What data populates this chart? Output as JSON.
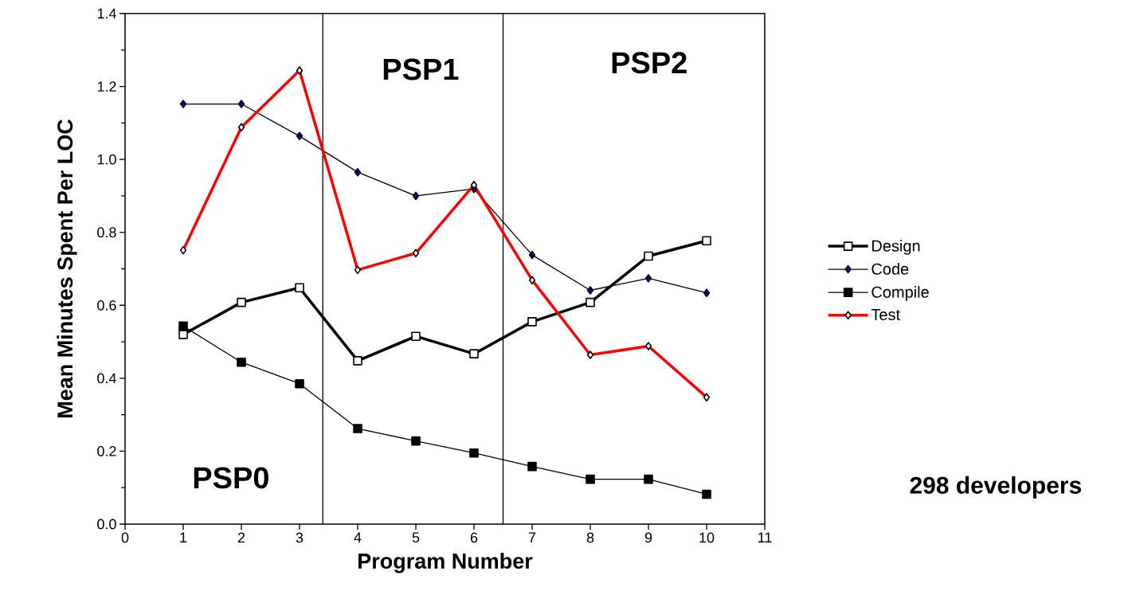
{
  "chart_data": {
    "type": "line",
    "xlabel": "Program Number",
    "ylabel": "Mean Minutes Spent Per LOC",
    "x": [
      1,
      2,
      3,
      4,
      5,
      6,
      7,
      8,
      9,
      10
    ],
    "series": [
      {
        "name": "Design",
        "color": "#000000",
        "marker": "square",
        "values": [
          0.52,
          0.608,
          0.648,
          0.448,
          0.515,
          0.467,
          0.555,
          0.608,
          0.735,
          0.777
        ]
      },
      {
        "name": "Code",
        "color": "#000000",
        "marker": "diamond",
        "values": [
          1.152,
          1.152,
          1.064,
          0.965,
          0.9,
          0.919,
          0.738,
          0.641,
          0.674,
          0.634
        ]
      },
      {
        "name": "Compile",
        "color": "#000000",
        "marker": "square",
        "values": [
          0.543,
          0.444,
          0.385,
          0.262,
          0.228,
          0.195,
          0.158,
          0.123,
          0.123,
          0.082
        ]
      },
      {
        "name": "Test",
        "color": "#ff0000",
        "marker": "diamond",
        "values": [
          0.751,
          1.088,
          1.244,
          0.697,
          0.743,
          0.93,
          0.669,
          0.464,
          0.488,
          0.348
        ]
      }
    ],
    "xlim": [
      0,
      11
    ],
    "ylim": [
      0,
      1.4
    ],
    "xticks": [
      0,
      1,
      2,
      3,
      4,
      5,
      6,
      7,
      8,
      9,
      10,
      11
    ],
    "yticks": [
      {
        "value": 0,
        "label": "0.0"
      },
      {
        "value": 0.2,
        "label": "0.2"
      },
      {
        "value": 0.4,
        "label": "0.4"
      },
      {
        "value": 0.6,
        "label": "0.6"
      },
      {
        "value": 0.8,
        "label": "0.8"
      },
      {
        "value": 1.0,
        "label": "1.0"
      },
      {
        "value": 1.2,
        "label": "1.2"
      },
      {
        "value": 1.4,
        "label": "1.4"
      }
    ],
    "ref_lines": [
      {
        "axis": "x",
        "value": 3.4
      },
      {
        "axis": "x",
        "value": 6.5
      }
    ],
    "annotations": [
      "PSP0",
      "PSP1",
      "PSP2",
      "298 developers"
    ],
    "grid": false,
    "legend": "right",
    "line_style": "solid"
  }
}
